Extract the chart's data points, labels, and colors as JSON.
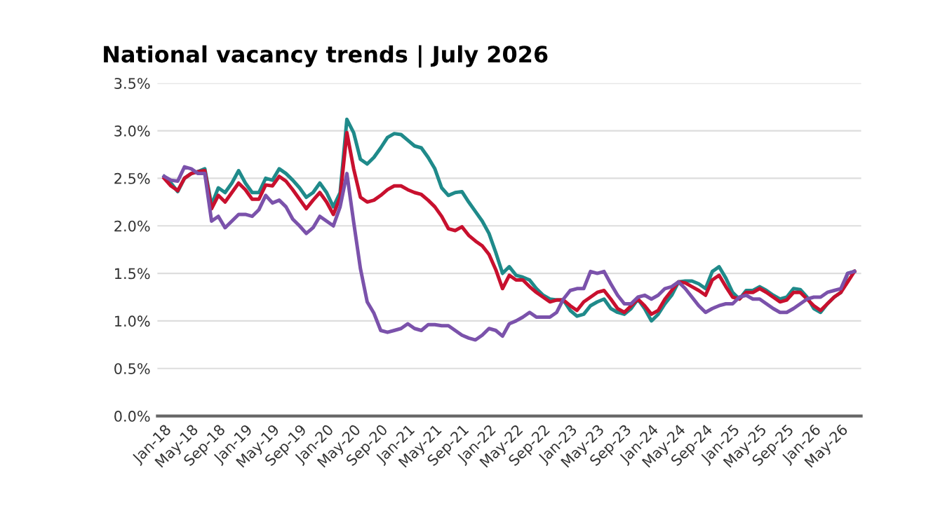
{
  "chart_data": {
    "type": "line",
    "title": "National vacancy trends | July 2026",
    "categories": [
      "Jan-18",
      null,
      null,
      null,
      "May-18",
      null,
      null,
      null,
      "Sep-18",
      null,
      null,
      null,
      "Jan-19",
      null,
      null,
      null,
      "May-19",
      null,
      null,
      null,
      "Sep-19",
      null,
      null,
      null,
      "Jan-20",
      null,
      null,
      null,
      "May-20",
      null,
      null,
      null,
      "Sep-20",
      null,
      null,
      null,
      "Jan-21",
      null,
      null,
      null,
      "May-21",
      null,
      null,
      null,
      "Sep-21",
      null,
      null,
      null,
      "Jan-22",
      null,
      null,
      null,
      "May-22",
      null,
      null,
      null,
      "Sep-22",
      null,
      null,
      null,
      "Jan-23",
      null,
      null,
      null,
      "May-23",
      null,
      null,
      null,
      "Sep-23",
      null,
      null,
      null,
      "Jan-24",
      null,
      null,
      null,
      "May-24",
      null,
      null,
      null,
      "Sep-24",
      null,
      null,
      null,
      "Jan-25",
      null,
      null,
      null,
      "May-25",
      null,
      null,
      null,
      "Sep-25",
      null,
      null,
      null,
      "Jan-26",
      null,
      null,
      null,
      "May-26",
      null,
      null
    ],
    "series": [
      {
        "color": "#1f8a8a",
        "values": [
          2.52,
          2.45,
          2.36,
          2.5,
          2.55,
          2.57,
          2.6,
          2.22,
          2.4,
          2.35,
          2.45,
          2.58,
          2.45,
          2.35,
          2.35,
          2.5,
          2.48,
          2.6,
          2.55,
          2.48,
          2.4,
          2.3,
          2.35,
          2.45,
          2.35,
          2.2,
          2.35,
          3.12,
          2.98,
          2.7,
          2.65,
          2.72,
          2.82,
          2.93,
          2.97,
          2.96,
          2.9,
          2.84,
          2.82,
          2.72,
          2.6,
          2.4,
          2.32,
          2.35,
          2.36,
          2.25,
          2.15,
          2.05,
          1.92,
          1.72,
          1.5,
          1.57,
          1.48,
          1.46,
          1.43,
          1.34,
          1.27,
          1.23,
          1.22,
          1.22,
          1.11,
          1.05,
          1.07,
          1.16,
          1.2,
          1.23,
          1.13,
          1.09,
          1.07,
          1.13,
          1.23,
          1.13,
          1.0,
          1.07,
          1.18,
          1.27,
          1.41,
          1.42,
          1.42,
          1.39,
          1.34,
          1.52,
          1.57,
          1.45,
          1.3,
          1.23,
          1.32,
          1.32,
          1.36,
          1.32,
          1.27,
          1.23,
          1.25,
          1.34,
          1.33,
          1.25,
          1.13,
          1.09,
          1.18,
          1.25,
          1.3,
          1.5,
          1.52
        ]
      },
      {
        "color": "#c8102e",
        "values": [
          2.5,
          2.42,
          2.37,
          2.5,
          2.55,
          2.57,
          2.58,
          2.18,
          2.32,
          2.25,
          2.35,
          2.45,
          2.38,
          2.28,
          2.28,
          2.43,
          2.42,
          2.52,
          2.47,
          2.38,
          2.28,
          2.18,
          2.27,
          2.35,
          2.25,
          2.12,
          2.3,
          2.98,
          2.6,
          2.3,
          2.25,
          2.27,
          2.32,
          2.38,
          2.42,
          2.42,
          2.38,
          2.35,
          2.33,
          2.27,
          2.2,
          2.1,
          1.97,
          1.95,
          1.99,
          1.9,
          1.84,
          1.79,
          1.7,
          1.54,
          1.34,
          1.48,
          1.43,
          1.43,
          1.36,
          1.3,
          1.25,
          1.2,
          1.22,
          1.22,
          1.16,
          1.11,
          1.2,
          1.25,
          1.3,
          1.32,
          1.23,
          1.13,
          1.09,
          1.16,
          1.23,
          1.16,
          1.07,
          1.11,
          1.23,
          1.32,
          1.41,
          1.4,
          1.36,
          1.32,
          1.27,
          1.43,
          1.48,
          1.36,
          1.25,
          1.23,
          1.3,
          1.3,
          1.34,
          1.3,
          1.25,
          1.2,
          1.22,
          1.3,
          1.3,
          1.23,
          1.16,
          1.11,
          1.18,
          1.25,
          1.3,
          1.41,
          1.52
        ]
      },
      {
        "color": "#7b52ab",
        "values": [
          2.52,
          2.48,
          2.47,
          2.62,
          2.6,
          2.55,
          2.55,
          2.05,
          2.1,
          1.98,
          2.05,
          2.12,
          2.12,
          2.1,
          2.17,
          2.32,
          2.24,
          2.27,
          2.2,
          2.07,
          2.0,
          1.92,
          1.98,
          2.1,
          2.05,
          2.0,
          2.2,
          2.55,
          2.04,
          1.55,
          1.2,
          1.08,
          0.9,
          0.88,
          0.9,
          0.92,
          0.97,
          0.92,
          0.9,
          0.96,
          0.96,
          0.95,
          0.95,
          0.9,
          0.85,
          0.82,
          0.8,
          0.85,
          0.92,
          0.9,
          0.84,
          0.97,
          1.0,
          1.04,
          1.09,
          1.04,
          1.04,
          1.04,
          1.09,
          1.23,
          1.32,
          1.34,
          1.34,
          1.52,
          1.5,
          1.52,
          1.39,
          1.27,
          1.18,
          1.18,
          1.25,
          1.27,
          1.23,
          1.27,
          1.34,
          1.36,
          1.41,
          1.34,
          1.25,
          1.16,
          1.09,
          1.13,
          1.16,
          1.18,
          1.18,
          1.25,
          1.27,
          1.23,
          1.23,
          1.18,
          1.13,
          1.09,
          1.09,
          1.13,
          1.18,
          1.23,
          1.25,
          1.25,
          1.3,
          1.32,
          1.34,
          1.5,
          1.52
        ]
      }
    ],
    "ylim": [
      0,
      3.5
    ],
    "yticks": [
      {
        "value": 0,
        "label": "0.0%"
      },
      {
        "value": 0.5,
        "label": "0.5%"
      },
      {
        "value": 1,
        "label": "1.0%"
      },
      {
        "value": 1.5,
        "label": "1.5%"
      },
      {
        "value": 2,
        "label": "2.0%"
      },
      {
        "value": 2.5,
        "label": "2.5%"
      },
      {
        "value": 3,
        "label": "3.0%"
      },
      {
        "value": 3.5,
        "label": "3.5%"
      }
    ],
    "grid": "y",
    "legend": false,
    "marker": "none",
    "line_style": "solid"
  }
}
